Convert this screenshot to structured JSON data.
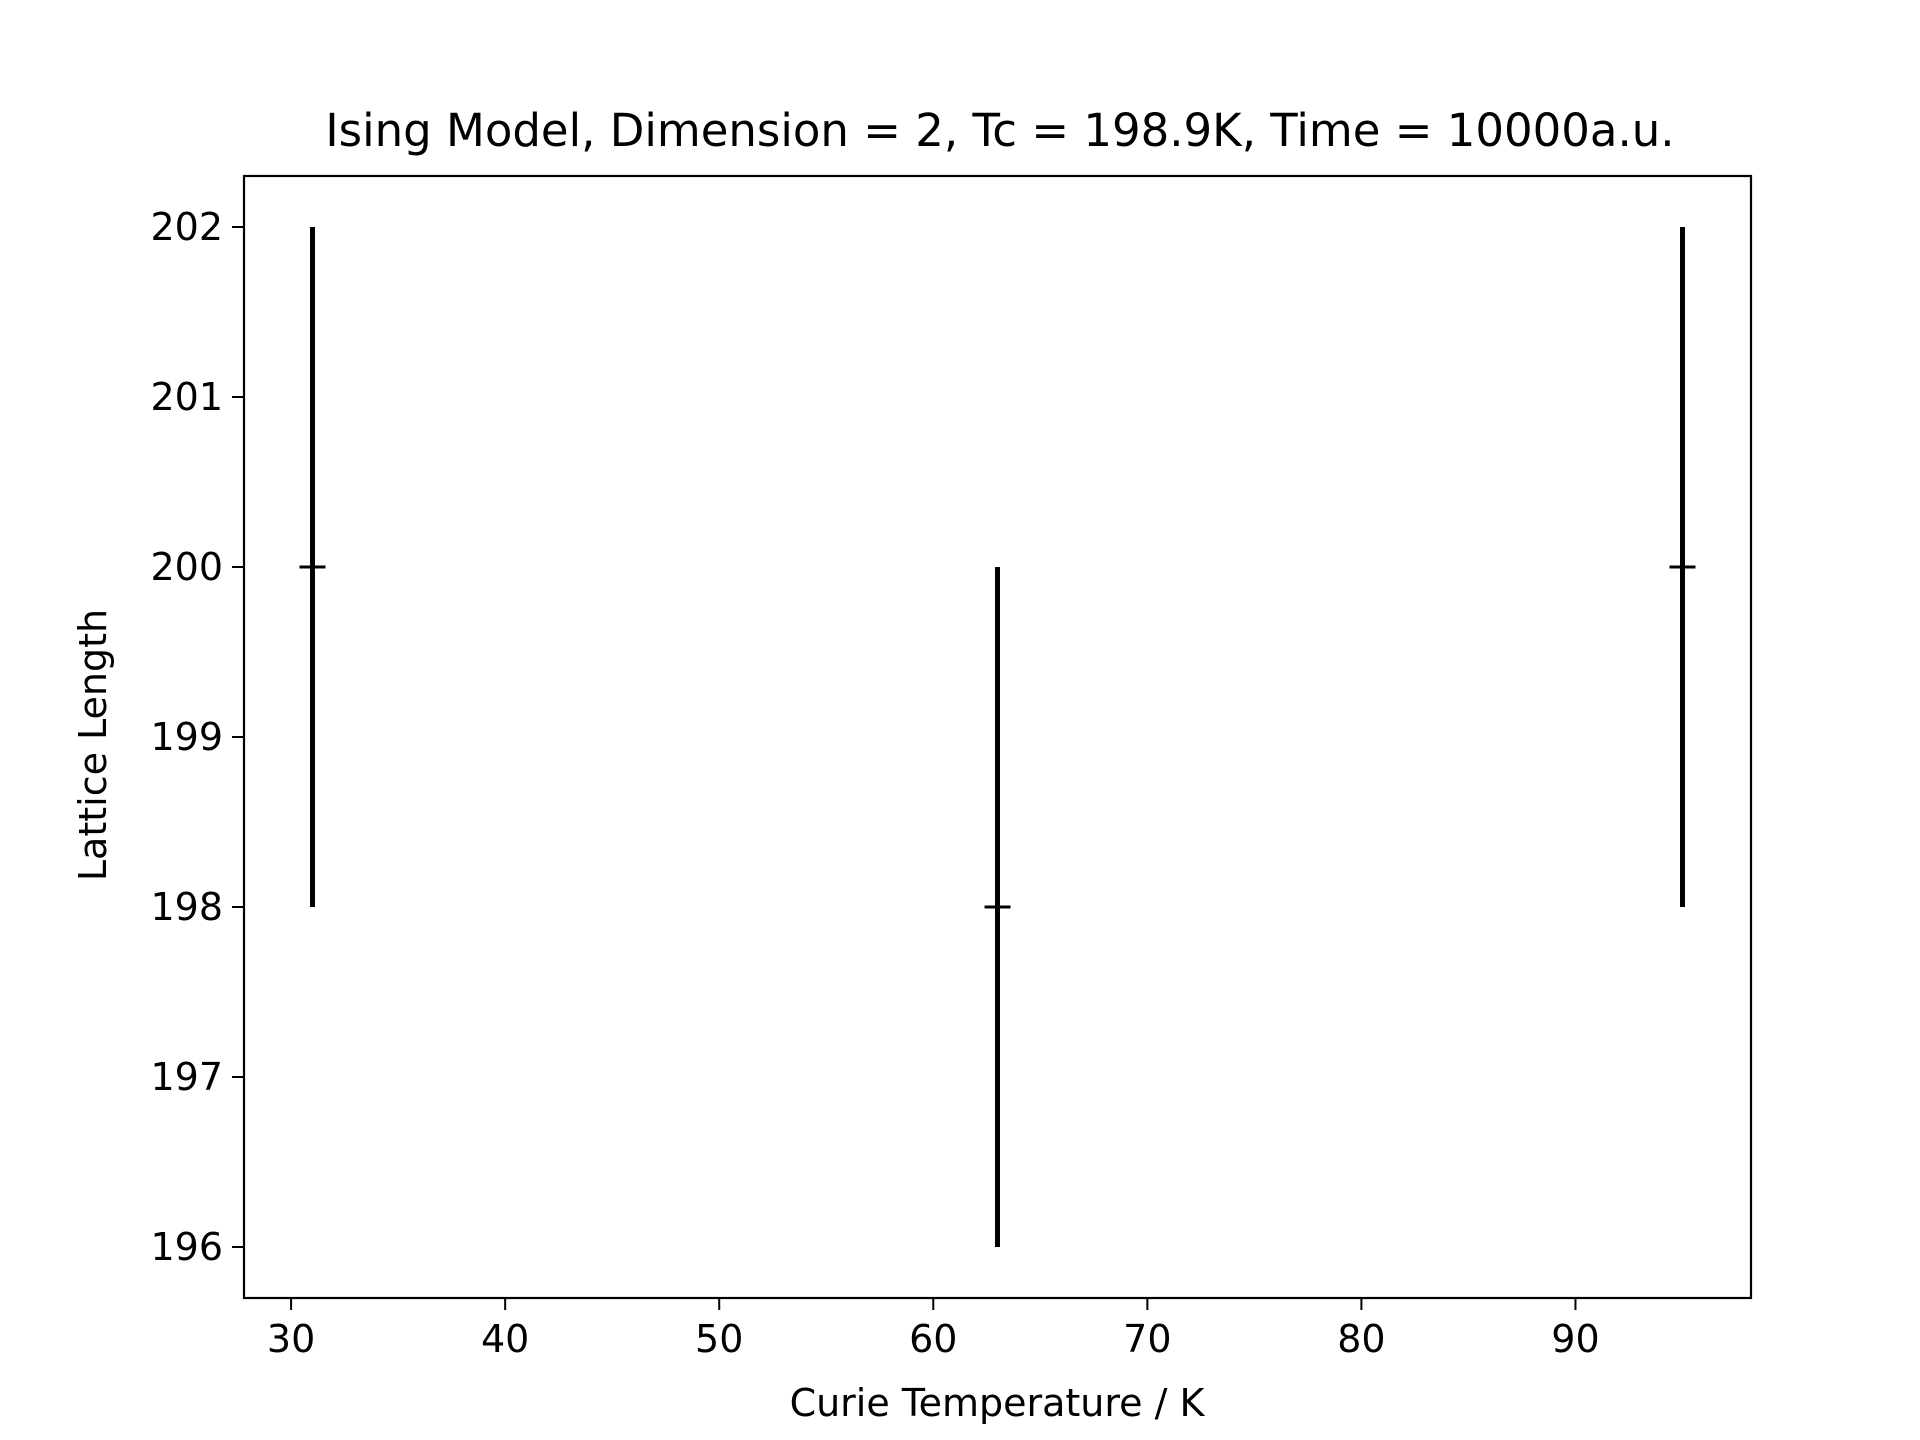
{
  "chart_data": {
    "type": "scatter",
    "title": "Ising Model, Dimension = 2, Tc = 198.9K, Time = 10000a.u.",
    "xlabel": "Curie Temperature / K",
    "ylabel": "Lattice Length",
    "xlim": [
      27.8,
      98.2
    ],
    "ylim": [
      195.7,
      202.3
    ],
    "xticks": [
      30,
      40,
      50,
      60,
      70,
      80,
      90
    ],
    "yticks": [
      196,
      197,
      198,
      199,
      200,
      201,
      202
    ],
    "grid": false,
    "legend": "none",
    "marker": "+",
    "color": "#000000",
    "points": [
      {
        "x": 31,
        "y": 200,
        "yerr": 2
      },
      {
        "x": 63,
        "y": 198,
        "yerr": 2
      },
      {
        "x": 95,
        "y": 200,
        "yerr": 2
      }
    ]
  }
}
